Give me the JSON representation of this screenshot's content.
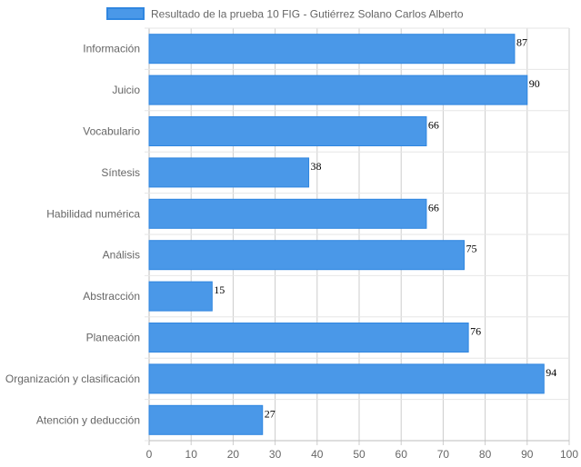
{
  "chart_data": {
    "type": "bar",
    "orientation": "horizontal",
    "categories": [
      "Información",
      "Juicio",
      "Vocabulario",
      "Síntesis",
      "Habilidad numérica",
      "Análisis",
      "Abstracción",
      "Planeación",
      "Organización y clasificación",
      "Atención y deducción"
    ],
    "series": [
      {
        "name": "Resultado de la prueba 10 FIG - Gutiérrez Solano Carlos Alberto",
        "values": [
          87,
          90,
          66,
          38,
          66,
          75,
          15,
          76,
          94,
          27
        ],
        "color": "#4a98e8",
        "border_color": "#2f86e0"
      }
    ],
    "xlim": [
      0,
      100
    ],
    "x_ticks": [
      0,
      10,
      20,
      30,
      40,
      50,
      60,
      70,
      80,
      90,
      100
    ],
    "grid": true,
    "legend_position": "top",
    "data_labels": true
  }
}
